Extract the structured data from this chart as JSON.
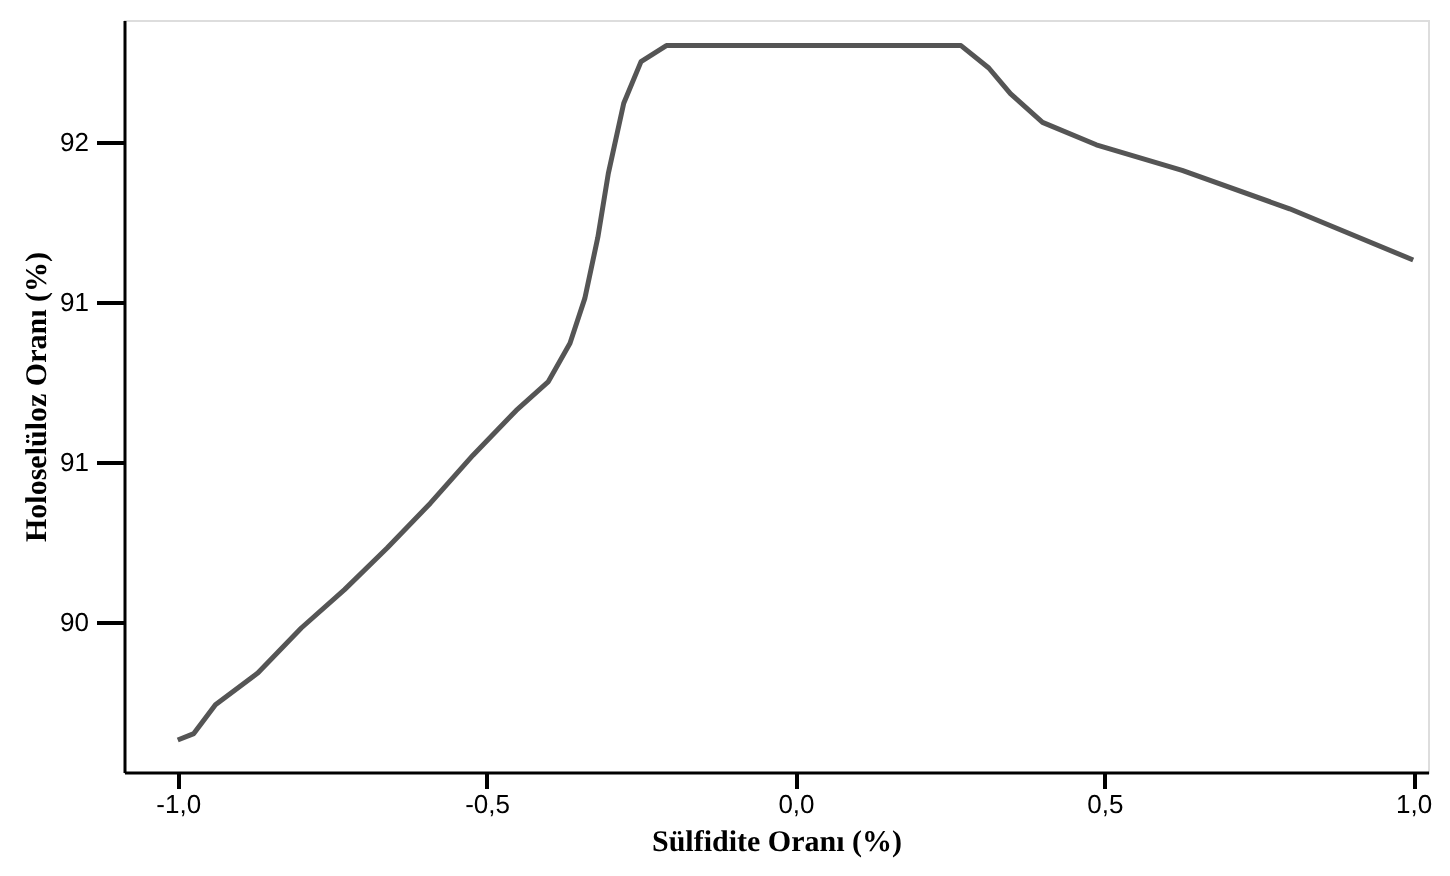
{
  "chart_data": {
    "type": "line",
    "xlabel": "Sülfidite Oranı (%)",
    "ylabel": "Holoselüloz Oranı (%)",
    "x": [
      -1.0,
      -0.974,
      -0.939,
      -0.87,
      -0.8,
      -0.73,
      -0.661,
      -0.591,
      -0.522,
      -0.452,
      -0.4,
      -0.365,
      -0.341,
      -0.32,
      -0.303,
      -0.278,
      -0.25,
      -0.209,
      -0.07,
      0.104,
      0.268,
      0.313,
      0.348,
      0.4,
      0.487,
      0.626,
      0.8,
      1.0
    ],
    "series": [
      {
        "color": "#555555",
        "values": [
          89.63,
          89.65,
          89.74,
          89.84,
          89.98,
          90.1,
          90.23,
          90.37,
          90.52,
          90.66,
          90.75,
          90.87,
          91.01,
          91.2,
          91.4,
          91.62,
          91.75,
          91.8,
          91.8,
          91.8,
          91.8,
          91.73,
          91.65,
          91.56,
          91.49,
          91.41,
          91.29,
          91.13
        ]
      }
    ],
    "xlim": [
      -1.087,
      1.024
    ],
    "ylim": [
      89.53,
      91.88
    ],
    "xticks": [
      {
        "value": -1.0,
        "label": "-1,0"
      },
      {
        "value": -0.5,
        "label": "-0,5"
      },
      {
        "value": 0.0,
        "label": "0,0"
      },
      {
        "value": 0.5,
        "label": "0,5"
      },
      {
        "value": 1.0,
        "label": "1,0"
      }
    ],
    "yticks": [
      {
        "value": 90,
        "label": "90"
      },
      {
        "value": 90.5,
        "label": "91"
      },
      {
        "value": 91,
        "label": "91"
      },
      {
        "value": 91.5,
        "label": "92"
      }
    ],
    "grid": false,
    "marker": "none",
    "line_style": "solid"
  }
}
